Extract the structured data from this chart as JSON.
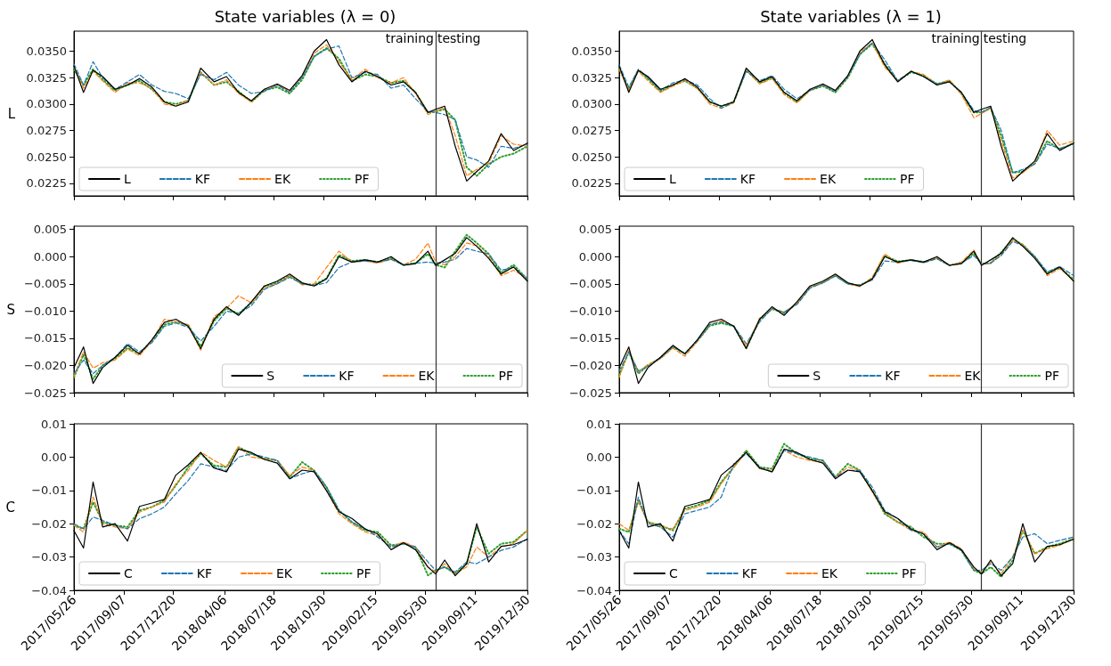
{
  "chart_data": [
    {
      "type": "line",
      "title": "State variables (λ = 0)",
      "ylabel": "L",
      "legend": "bottom left",
      "tick_labels": "y",
      "x": [
        "2017-05-26",
        "2017-06-15",
        "2017-07-05",
        "2017-07-25",
        "2017-08-20",
        "2017-09-15",
        "2017-10-10",
        "2017-11-05",
        "2017-12-01",
        "2017-12-25",
        "2018-01-20",
        "2018-02-15",
        "2018-03-15",
        "2018-04-10",
        "2018-05-05",
        "2018-06-01",
        "2018-06-28",
        "2018-07-25",
        "2018-08-20",
        "2018-09-15",
        "2018-10-10",
        "2018-11-05",
        "2018-12-01",
        "2018-12-28",
        "2019-01-25",
        "2019-02-20",
        "2019-03-20",
        "2019-04-15",
        "2019-05-10",
        "2019-06-05",
        "2019-06-21",
        "2019-07-10",
        "2019-08-01",
        "2019-08-25",
        "2019-09-15",
        "2019-10-10",
        "2019-11-05",
        "2019-12-01",
        "2019-12-30"
      ],
      "xlim": [
        "2017-05-26",
        "2019-12-30"
      ],
      "xticks": [
        {
          "value": "2017-05-26",
          "label": null
        },
        {
          "value": "2017-09-07",
          "label": null
        },
        {
          "value": "2017-12-20",
          "label": null
        },
        {
          "value": "2018-04-06",
          "label": null
        },
        {
          "value": "2018-07-18",
          "label": null
        },
        {
          "value": "2018-10-30",
          "label": null
        },
        {
          "value": "2019-02-15",
          "label": null
        },
        {
          "value": "2019-05-30",
          "label": null
        },
        {
          "value": "2019-09-11",
          "label": null
        },
        {
          "value": "2019-12-30",
          "label": null
        }
      ],
      "ylim": [
        0.0213,
        0.0369
      ],
      "yticks": [
        {
          "value": 0.0225,
          "label": "0.0225"
        },
        {
          "value": 0.025,
          "label": "0.0250"
        },
        {
          "value": 0.0275,
          "label": "0.0275"
        },
        {
          "value": 0.03,
          "label": "0.0300"
        },
        {
          "value": 0.0325,
          "label": "0.0325"
        },
        {
          "value": 0.035,
          "label": "0.0350"
        }
      ],
      "ref_lines": [
        {
          "axis": "x",
          "value": "2019-06-21",
          "color": "#333333"
        }
      ],
      "annotations": [
        {
          "text": "training",
          "x": "2019-06-21",
          "y": 0.0362
        },
        {
          "text": "testing",
          "x": "2019-06-21",
          "y": 0.0362
        }
      ],
      "series": [
        {
          "name": "L",
          "color": "#000000",
          "line_style": "solid",
          "values": [
            0.0336,
            0.0311,
            0.0332,
            0.0326,
            0.0314,
            0.0318,
            0.0324,
            0.0316,
            0.0302,
            0.0298,
            0.0302,
            0.0334,
            0.0321,
            0.0326,
            0.0311,
            0.0303,
            0.0314,
            0.0319,
            0.0313,
            0.0327,
            0.035,
            0.0361,
            0.0337,
            0.0321,
            0.0331,
            0.0326,
            0.0318,
            0.0321,
            0.0311,
            0.0292,
            0.0295,
            0.0298,
            0.026,
            0.0227,
            0.0236,
            0.0246,
            0.0272,
            0.0256,
            0.0263
          ]
        },
        {
          "name": "KF",
          "color": "#1f77b4",
          "line_style": "dashed",
          "values": [
            0.0338,
            0.0318,
            0.034,
            0.0325,
            0.0314,
            0.0321,
            0.0328,
            0.0318,
            0.0312,
            0.031,
            0.0305,
            0.0328,
            0.0323,
            0.033,
            0.0318,
            0.031,
            0.0312,
            0.0318,
            0.0311,
            0.0325,
            0.0345,
            0.0352,
            0.0355,
            0.0325,
            0.033,
            0.0328,
            0.0315,
            0.0318,
            0.0305,
            0.0293,
            0.0292,
            0.029,
            0.0285,
            0.025,
            0.0247,
            0.024,
            0.026,
            0.0258,
            0.0262
          ]
        },
        {
          "name": "EK",
          "color": "#ff7f0e",
          "line_style": "dashed",
          "values": [
            0.0335,
            0.0315,
            0.0331,
            0.0322,
            0.0311,
            0.032,
            0.032,
            0.0315,
            0.03,
            0.0298,
            0.0304,
            0.033,
            0.0318,
            0.0323,
            0.031,
            0.0302,
            0.0314,
            0.0318,
            0.0312,
            0.0326,
            0.0348,
            0.0356,
            0.034,
            0.0323,
            0.0333,
            0.0325,
            0.032,
            0.0325,
            0.031,
            0.029,
            0.0293,
            0.0297,
            0.027,
            0.0232,
            0.0238,
            0.0244,
            0.027,
            0.0262,
            0.026
          ]
        },
        {
          "name": "PF",
          "color": "#2ca02c",
          "line_style": "dotted",
          "values": [
            0.0333,
            0.0318,
            0.0333,
            0.0323,
            0.0313,
            0.0318,
            0.0322,
            0.0314,
            0.0302,
            0.03,
            0.0303,
            0.033,
            0.0318,
            0.0321,
            0.0312,
            0.0302,
            0.0313,
            0.0316,
            0.031,
            0.0323,
            0.0345,
            0.0353,
            0.0343,
            0.0322,
            0.0328,
            0.0326,
            0.032,
            0.0322,
            0.0311,
            0.0292,
            0.0293,
            0.0295,
            0.0285,
            0.024,
            0.0232,
            0.0243,
            0.025,
            0.0253,
            0.026
          ]
        }
      ]
    },
    {
      "type": "line",
      "title": "State variables (λ = 1)",
      "legend": "bottom left",
      "tick_labels": "y",
      "x": [
        "2017-05-26",
        "2017-06-15",
        "2017-07-05",
        "2017-07-25",
        "2017-08-20",
        "2017-09-15",
        "2017-10-10",
        "2017-11-05",
        "2017-12-01",
        "2017-12-25",
        "2018-01-20",
        "2018-02-15",
        "2018-03-15",
        "2018-04-10",
        "2018-05-05",
        "2018-06-01",
        "2018-06-28",
        "2018-07-25",
        "2018-08-20",
        "2018-09-15",
        "2018-10-10",
        "2018-11-05",
        "2018-12-01",
        "2018-12-28",
        "2019-01-25",
        "2019-02-20",
        "2019-03-20",
        "2019-04-15",
        "2019-05-10",
        "2019-06-05",
        "2019-06-21",
        "2019-07-10",
        "2019-08-01",
        "2019-08-25",
        "2019-09-15",
        "2019-10-10",
        "2019-11-05",
        "2019-12-01",
        "2019-12-30"
      ],
      "xlim": [
        "2017-05-26",
        "2019-12-30"
      ],
      "xticks": [
        {
          "value": "2017-05-26",
          "label": null
        },
        {
          "value": "2017-09-07",
          "label": null
        },
        {
          "value": "2017-12-20",
          "label": null
        },
        {
          "value": "2018-04-06",
          "label": null
        },
        {
          "value": "2018-07-18",
          "label": null
        },
        {
          "value": "2018-10-30",
          "label": null
        },
        {
          "value": "2019-02-15",
          "label": null
        },
        {
          "value": "2019-05-30",
          "label": null
        },
        {
          "value": "2019-09-11",
          "label": null
        },
        {
          "value": "2019-12-30",
          "label": null
        }
      ],
      "ylim": [
        0.0213,
        0.0369
      ],
      "yticks": [
        {
          "value": 0.0225,
          "label": "0.0225"
        },
        {
          "value": 0.025,
          "label": "0.0250"
        },
        {
          "value": 0.0275,
          "label": "0.0275"
        },
        {
          "value": 0.03,
          "label": "0.0300"
        },
        {
          "value": 0.0325,
          "label": "0.0325"
        },
        {
          "value": 0.035,
          "label": "0.0350"
        }
      ],
      "ref_lines": [
        {
          "axis": "x",
          "value": "2019-06-21",
          "color": "#333333"
        }
      ],
      "annotations": [
        {
          "text": "training",
          "x": "2019-06-21",
          "y": 0.0362
        },
        {
          "text": "testing",
          "x": "2019-06-21",
          "y": 0.0362
        }
      ],
      "series": [
        {
          "name": "L",
          "color": "#000000",
          "line_style": "solid",
          "values": [
            0.0336,
            0.0311,
            0.0332,
            0.0326,
            0.0314,
            0.0318,
            0.0324,
            0.0316,
            0.0302,
            0.0298,
            0.0302,
            0.0334,
            0.0321,
            0.0326,
            0.0311,
            0.0303,
            0.0314,
            0.0319,
            0.0313,
            0.0327,
            0.035,
            0.0361,
            0.0337,
            0.0321,
            0.0331,
            0.0326,
            0.0318,
            0.0321,
            0.0311,
            0.0292,
            0.0295,
            0.0298,
            0.026,
            0.0227,
            0.0236,
            0.0246,
            0.0272,
            0.0256,
            0.0263
          ]
        },
        {
          "name": "KF",
          "color": "#1f77b4",
          "line_style": "dashed",
          "values": [
            0.0337,
            0.0316,
            0.0333,
            0.0325,
            0.0313,
            0.032,
            0.0323,
            0.0318,
            0.0305,
            0.0296,
            0.0302,
            0.0331,
            0.0322,
            0.0327,
            0.0314,
            0.0305,
            0.0313,
            0.0318,
            0.0312,
            0.0326,
            0.0347,
            0.0358,
            0.0342,
            0.0322,
            0.0331,
            0.0326,
            0.0319,
            0.0321,
            0.0311,
            0.0294,
            0.0292,
            0.0297,
            0.0275,
            0.0235,
            0.0238,
            0.0243,
            0.0262,
            0.0258,
            0.0262
          ]
        },
        {
          "name": "EK",
          "color": "#ff7f0e",
          "line_style": "dashed",
          "values": [
            0.0333,
            0.0313,
            0.0331,
            0.0322,
            0.0311,
            0.0317,
            0.0322,
            0.0315,
            0.03,
            0.0296,
            0.0301,
            0.0332,
            0.0319,
            0.0324,
            0.0309,
            0.0301,
            0.0313,
            0.0318,
            0.0312,
            0.0326,
            0.0349,
            0.0358,
            0.0335,
            0.0322,
            0.0331,
            0.0328,
            0.0318,
            0.0323,
            0.0309,
            0.0287,
            0.0291,
            0.0296,
            0.0265,
            0.023,
            0.0235,
            0.0244,
            0.0275,
            0.0261,
            0.0265
          ]
        },
        {
          "name": "PF",
          "color": "#2ca02c",
          "line_style": "dotted",
          "values": [
            0.0334,
            0.0314,
            0.0332,
            0.0324,
            0.0312,
            0.0318,
            0.0322,
            0.0315,
            0.0302,
            0.0298,
            0.0302,
            0.0332,
            0.032,
            0.0325,
            0.0311,
            0.0302,
            0.0313,
            0.0317,
            0.0311,
            0.0325,
            0.0347,
            0.0357,
            0.0338,
            0.0322,
            0.033,
            0.0327,
            0.0319,
            0.0322,
            0.031,
            0.0292,
            0.0292,
            0.0296,
            0.027,
            0.0235,
            0.0236,
            0.0244,
            0.0265,
            0.0257,
            0.0263
          ]
        }
      ]
    },
    {
      "type": "line",
      "ylabel": "S",
      "legend": "bottom right",
      "tick_labels": "y",
      "x": [
        "2017-05-26",
        "2017-06-15",
        "2017-07-05",
        "2017-07-25",
        "2017-08-20",
        "2017-09-15",
        "2017-10-10",
        "2017-11-05",
        "2017-12-01",
        "2017-12-25",
        "2018-01-20",
        "2018-02-15",
        "2018-03-15",
        "2018-04-10",
        "2018-05-05",
        "2018-06-01",
        "2018-06-28",
        "2018-07-25",
        "2018-08-20",
        "2018-09-15",
        "2018-10-10",
        "2018-11-05",
        "2018-12-01",
        "2018-12-28",
        "2019-01-25",
        "2019-02-20",
        "2019-03-20",
        "2019-04-15",
        "2019-05-10",
        "2019-06-05",
        "2019-06-21",
        "2019-07-10",
        "2019-08-01",
        "2019-08-25",
        "2019-09-15",
        "2019-10-10",
        "2019-11-05",
        "2019-12-01",
        "2019-12-30"
      ],
      "xlim": [
        "2017-05-26",
        "2019-12-30"
      ],
      "xticks": [
        {
          "value": "2017-05-26",
          "label": null
        },
        {
          "value": "2017-09-07",
          "label": null
        },
        {
          "value": "2017-12-20",
          "label": null
        },
        {
          "value": "2018-04-06",
          "label": null
        },
        {
          "value": "2018-07-18",
          "label": null
        },
        {
          "value": "2018-10-30",
          "label": null
        },
        {
          "value": "2019-02-15",
          "label": null
        },
        {
          "value": "2019-05-30",
          "label": null
        },
        {
          "value": "2019-09-11",
          "label": null
        },
        {
          "value": "2019-12-30",
          "label": null
        }
      ],
      "ylim": [
        -0.025,
        0.0056
      ],
      "yticks": [
        {
          "value": -0.025,
          "label": "−0.025"
        },
        {
          "value": -0.02,
          "label": "−0.020"
        },
        {
          "value": -0.015,
          "label": "−0.015"
        },
        {
          "value": -0.01,
          "label": "−0.010"
        },
        {
          "value": -0.005,
          "label": "−0.005"
        },
        {
          "value": 0,
          "label": "0.000"
        },
        {
          "value": 0.005,
          "label": "0.005"
        }
      ],
      "ref_lines": [
        {
          "axis": "x",
          "value": "2019-06-21",
          "color": "#333333"
        }
      ],
      "series": [
        {
          "name": "S",
          "color": "#000000",
          "line_style": "solid",
          "values": [
            -0.0204,
            -0.0166,
            -0.0233,
            -0.0204,
            -0.0185,
            -0.0163,
            -0.0179,
            -0.0153,
            -0.0121,
            -0.0115,
            -0.0128,
            -0.0169,
            -0.0115,
            -0.0092,
            -0.0108,
            -0.0083,
            -0.0054,
            -0.0045,
            -0.0032,
            -0.0048,
            -0.0054,
            -0.0041,
            0.0,
            -0.001,
            -0.0006,
            -0.001,
            0.0,
            -0.0016,
            -0.0013,
            0.001,
            -0.0016,
            -0.0006,
            0.0006,
            0.0035,
            0.0019,
            -0.0003,
            -0.0032,
            -0.0019,
            -0.0045
          ]
        },
        {
          "name": "KF",
          "color": "#1f77b4",
          "line_style": "dashed",
          "values": [
            -0.0215,
            -0.019,
            -0.0215,
            -0.02,
            -0.0185,
            -0.016,
            -0.0175,
            -0.0158,
            -0.0128,
            -0.0122,
            -0.013,
            -0.0155,
            -0.0128,
            -0.01,
            -0.0105,
            -0.009,
            -0.006,
            -0.005,
            -0.0038,
            -0.005,
            -0.0053,
            -0.0048,
            -0.002,
            -0.001,
            -0.0008,
            -0.001,
            -0.0005,
            -0.0015,
            -0.0012,
            -0.001,
            -0.0012,
            -0.001,
            -0.0005,
            0.0015,
            0.001,
            0.0005,
            -0.0025,
            -0.002,
            -0.004
          ]
        },
        {
          "name": "EK",
          "color": "#ff7f0e",
          "line_style": "dashed",
          "values": [
            -0.022,
            -0.0175,
            -0.0205,
            -0.0195,
            -0.019,
            -0.017,
            -0.0182,
            -0.0155,
            -0.0115,
            -0.012,
            -0.0125,
            -0.0172,
            -0.011,
            -0.0095,
            -0.0072,
            -0.0085,
            -0.0058,
            -0.005,
            -0.0035,
            -0.0052,
            -0.005,
            -0.002,
            0.001,
            -0.001,
            -0.0008,
            -0.0012,
            -0.0005,
            -0.0015,
            -0.0005,
            0.0025,
            -0.001,
            -0.0015,
            0.0,
            0.0025,
            0.002,
            0.0,
            -0.0035,
            -0.0025,
            -0.004
          ]
        },
        {
          "name": "PF",
          "color": "#2ca02c",
          "line_style": "dotted",
          "values": [
            -0.0222,
            -0.018,
            -0.0225,
            -0.02,
            -0.0187,
            -0.0168,
            -0.0178,
            -0.0155,
            -0.0125,
            -0.012,
            -0.0126,
            -0.0165,
            -0.0118,
            -0.0095,
            -0.0105,
            -0.0085,
            -0.0055,
            -0.0048,
            -0.0035,
            -0.005,
            -0.0052,
            -0.004,
            0.0003,
            -0.0008,
            -0.0006,
            -0.001,
            -0.0003,
            -0.0015,
            -0.0012,
            0.0005,
            -0.0015,
            -0.002,
            0.001,
            0.004,
            0.0025,
            0.0005,
            -0.003,
            -0.0015,
            -0.0042
          ]
        }
      ]
    },
    {
      "type": "line",
      "legend": "bottom right",
      "tick_labels": "y",
      "x": [
        "2017-05-26",
        "2017-06-15",
        "2017-07-05",
        "2017-07-25",
        "2017-08-20",
        "2017-09-15",
        "2017-10-10",
        "2017-11-05",
        "2017-12-01",
        "2017-12-25",
        "2018-01-20",
        "2018-02-15",
        "2018-03-15",
        "2018-04-10",
        "2018-05-05",
        "2018-06-01",
        "2018-06-28",
        "2018-07-25",
        "2018-08-20",
        "2018-09-15",
        "2018-10-10",
        "2018-11-05",
        "2018-12-01",
        "2018-12-28",
        "2019-01-25",
        "2019-02-20",
        "2019-03-20",
        "2019-04-15",
        "2019-05-10",
        "2019-06-05",
        "2019-06-21",
        "2019-07-10",
        "2019-08-01",
        "2019-08-25",
        "2019-09-15",
        "2019-10-10",
        "2019-11-05",
        "2019-12-01",
        "2019-12-30"
      ],
      "xlim": [
        "2017-05-26",
        "2019-12-30"
      ],
      "xticks": [
        {
          "value": "2017-05-26",
          "label": null
        },
        {
          "value": "2017-09-07",
          "label": null
        },
        {
          "value": "2017-12-20",
          "label": null
        },
        {
          "value": "2018-04-06",
          "label": null
        },
        {
          "value": "2018-07-18",
          "label": null
        },
        {
          "value": "2018-10-30",
          "label": null
        },
        {
          "value": "2019-02-15",
          "label": null
        },
        {
          "value": "2019-05-30",
          "label": null
        },
        {
          "value": "2019-09-11",
          "label": null
        },
        {
          "value": "2019-12-30",
          "label": null
        }
      ],
      "ylim": [
        -0.025,
        0.0056
      ],
      "yticks": [
        {
          "value": -0.025,
          "label": "−0.025"
        },
        {
          "value": -0.02,
          "label": "−0.020"
        },
        {
          "value": -0.015,
          "label": "−0.015"
        },
        {
          "value": -0.01,
          "label": "−0.010"
        },
        {
          "value": -0.005,
          "label": "−0.005"
        },
        {
          "value": 0,
          "label": "0.000"
        },
        {
          "value": 0.005,
          "label": "0.005"
        }
      ],
      "ref_lines": [
        {
          "axis": "x",
          "value": "2019-06-21",
          "color": "#333333"
        }
      ],
      "series": [
        {
          "name": "S",
          "color": "#000000",
          "line_style": "solid",
          "values": [
            -0.0204,
            -0.0166,
            -0.0233,
            -0.0204,
            -0.0185,
            -0.0163,
            -0.0179,
            -0.0153,
            -0.0121,
            -0.0115,
            -0.0128,
            -0.0169,
            -0.0115,
            -0.0092,
            -0.0108,
            -0.0083,
            -0.0054,
            -0.0045,
            -0.0032,
            -0.0048,
            -0.0054,
            -0.0041,
            0.0,
            -0.001,
            -0.0006,
            -0.001,
            0.0,
            -0.0016,
            -0.0013,
            0.001,
            -0.0016,
            -0.0006,
            0.0006,
            0.0035,
            0.0019,
            -0.0003,
            -0.0032,
            -0.0019,
            -0.0045
          ]
        },
        {
          "name": "KF",
          "color": "#1f77b4",
          "line_style": "dashed",
          "values": [
            -0.021,
            -0.0175,
            -0.021,
            -0.0202,
            -0.0186,
            -0.0165,
            -0.0178,
            -0.0155,
            -0.0125,
            -0.012,
            -0.0127,
            -0.016,
            -0.012,
            -0.0095,
            -0.0102,
            -0.0088,
            -0.0058,
            -0.0048,
            -0.0036,
            -0.005,
            -0.0052,
            -0.0043,
            -0.0008,
            -0.001,
            -0.0007,
            -0.0011,
            -0.0004,
            -0.0016,
            -0.0012,
            0.0002,
            -0.0013,
            -0.0012,
            0.0002,
            0.0028,
            0.002,
            0.0,
            -0.0028,
            -0.0018,
            -0.0035
          ]
        },
        {
          "name": "EK",
          "color": "#ff7f0e",
          "line_style": "dashed",
          "values": [
            -0.0222,
            -0.0172,
            -0.0212,
            -0.0198,
            -0.0188,
            -0.0168,
            -0.0183,
            -0.0156,
            -0.0125,
            -0.0118,
            -0.0127,
            -0.0165,
            -0.0113,
            -0.0096,
            -0.0102,
            -0.0086,
            -0.0056,
            -0.0047,
            -0.0033,
            -0.005,
            -0.0055,
            -0.0038,
            0.0005,
            -0.0012,
            -0.0006,
            -0.0011,
            -0.0002,
            -0.0016,
            -0.001,
            0.0012,
            -0.0015,
            -0.0012,
            0.0004,
            0.003,
            0.0022,
            0.0,
            -0.0035,
            -0.0022,
            -0.0043
          ]
        },
        {
          "name": "PF",
          "color": "#2ca02c",
          "line_style": "dotted",
          "values": [
            -0.0218,
            -0.0175,
            -0.0215,
            -0.02,
            -0.0186,
            -0.0166,
            -0.0178,
            -0.0155,
            -0.0127,
            -0.0122,
            -0.0128,
            -0.0168,
            -0.0116,
            -0.0096,
            -0.0104,
            -0.0086,
            -0.0056,
            -0.0048,
            -0.0034,
            -0.005,
            -0.0053,
            -0.0041,
            0.0002,
            -0.0009,
            -0.0006,
            -0.001,
            -0.0003,
            -0.0016,
            -0.0012,
            0.0006,
            -0.0013,
            -0.0012,
            0.0008,
            0.0032,
            0.0022,
            0.0,
            -0.003,
            -0.002,
            -0.0042
          ]
        }
      ]
    },
    {
      "type": "line",
      "ylabel": "C",
      "legend": "bottom left",
      "x": [
        "2017-05-26",
        "2017-06-15",
        "2017-07-05",
        "2017-07-25",
        "2017-08-20",
        "2017-09-15",
        "2017-10-10",
        "2017-11-05",
        "2017-12-01",
        "2017-12-25",
        "2018-01-20",
        "2018-02-15",
        "2018-03-15",
        "2018-04-10",
        "2018-05-05",
        "2018-06-01",
        "2018-06-28",
        "2018-07-25",
        "2018-08-20",
        "2018-09-15",
        "2018-10-10",
        "2018-11-05",
        "2018-12-01",
        "2018-12-28",
        "2019-01-25",
        "2019-02-20",
        "2019-03-20",
        "2019-04-15",
        "2019-05-10",
        "2019-06-05",
        "2019-06-21",
        "2019-07-10",
        "2019-08-01",
        "2019-08-25",
        "2019-09-15",
        "2019-10-10",
        "2019-11-05",
        "2019-12-01",
        "2019-12-30"
      ],
      "xlim": [
        "2017-05-26",
        "2019-12-30"
      ],
      "xticks": [
        {
          "value": "2017-05-26",
          "label": "2017/05/26"
        },
        {
          "value": "2017-09-07",
          "label": "2017/09/07"
        },
        {
          "value": "2017-12-20",
          "label": "2017/12/20"
        },
        {
          "value": "2018-04-06",
          "label": "2018/04/06"
        },
        {
          "value": "2018-07-18",
          "label": "2018/07/18"
        },
        {
          "value": "2018-10-30",
          "label": "2018/10/30"
        },
        {
          "value": "2019-02-15",
          "label": "2019/02/15"
        },
        {
          "value": "2019-05-30",
          "label": "2019/05/30"
        },
        {
          "value": "2019-09-11",
          "label": "2019/09/11"
        },
        {
          "value": "2019-12-30",
          "label": "2019/12/30"
        }
      ],
      "ylim": [
        -0.04,
        0.01
      ],
      "yticks": [
        {
          "value": -0.04,
          "label": "−0.04"
        },
        {
          "value": -0.03,
          "label": "−0.03"
        },
        {
          "value": -0.02,
          "label": "−0.02"
        },
        {
          "value": -0.01,
          "label": "−0.01"
        },
        {
          "value": 0,
          "label": "0.00"
        },
        {
          "value": 0.01,
          "label": "0.01"
        }
      ],
      "ref_lines": [
        {
          "axis": "x",
          "value": "2019-06-21",
          "color": "#333333"
        }
      ],
      "series": [
        {
          "name": "C",
          "color": "#000000",
          "line_style": "solid",
          "values": [
            -0.0221,
            -0.0273,
            -0.0075,
            -0.021,
            -0.02,
            -0.0252,
            -0.0148,
            -0.0138,
            -0.0127,
            -0.0054,
            -0.0023,
            0.0014,
            -0.0033,
            -0.0044,
            0.0024,
            0.0014,
            -0.0007,
            -0.0018,
            -0.0065,
            -0.0039,
            -0.0044,
            -0.0101,
            -0.0164,
            -0.0184,
            -0.0216,
            -0.0231,
            -0.0278,
            -0.0257,
            -0.0278,
            -0.033,
            -0.0351,
            -0.0309,
            -0.0356,
            -0.032,
            -0.02,
            -0.0315,
            -0.0268,
            -0.0263,
            -0.0247
          ]
        },
        {
          "name": "KF",
          "color": "#1f77b4",
          "line_style": "dashed",
          "values": [
            -0.02,
            -0.0215,
            -0.018,
            -0.019,
            -0.0205,
            -0.0215,
            -0.0185,
            -0.017,
            -0.015,
            -0.011,
            -0.007,
            -0.002,
            -0.003,
            -0.004,
            0.0,
            0.001,
            0.0,
            -0.001,
            -0.0065,
            -0.005,
            -0.004,
            -0.009,
            -0.016,
            -0.0195,
            -0.0215,
            -0.024,
            -0.027,
            -0.026,
            -0.027,
            -0.0315,
            -0.034,
            -0.033,
            -0.0345,
            -0.0315,
            -0.032,
            -0.03,
            -0.028,
            -0.027,
            -0.0245
          ]
        },
        {
          "name": "EK",
          "color": "#ff7f0e",
          "line_style": "dashed",
          "values": [
            -0.0205,
            -0.0225,
            -0.012,
            -0.02,
            -0.021,
            -0.0215,
            -0.0165,
            -0.015,
            -0.0135,
            -0.008,
            -0.004,
            0.0015,
            -0.001,
            -0.003,
            0.003,
            0.0,
            -0.0005,
            -0.001,
            -0.0055,
            -0.003,
            -0.004,
            -0.01,
            -0.017,
            -0.02,
            -0.0225,
            -0.0235,
            -0.027,
            -0.0255,
            -0.027,
            -0.033,
            -0.0345,
            -0.032,
            -0.035,
            -0.033,
            -0.027,
            -0.03,
            -0.027,
            -0.026,
            -0.022
          ]
        },
        {
          "name": "PF",
          "color": "#2ca02c",
          "line_style": "dotted",
          "values": [
            -0.0205,
            -0.0215,
            -0.0135,
            -0.0195,
            -0.0205,
            -0.021,
            -0.016,
            -0.015,
            -0.013,
            -0.0085,
            -0.003,
            0.001,
            -0.0025,
            -0.003,
            0.003,
            0.001,
            -0.0005,
            -0.001,
            -0.006,
            -0.0015,
            -0.004,
            -0.009,
            -0.016,
            -0.0195,
            -0.022,
            -0.0225,
            -0.0265,
            -0.026,
            -0.027,
            -0.0355,
            -0.034,
            -0.033,
            -0.035,
            -0.032,
            -0.021,
            -0.029,
            -0.026,
            -0.0255,
            -0.022
          ]
        }
      ]
    },
    {
      "type": "line",
      "legend": "bottom left",
      "x": [
        "2017-05-26",
        "2017-06-15",
        "2017-07-05",
        "2017-07-25",
        "2017-08-20",
        "2017-09-15",
        "2017-10-10",
        "2017-11-05",
        "2017-12-01",
        "2017-12-25",
        "2018-01-20",
        "2018-02-15",
        "2018-03-15",
        "2018-04-10",
        "2018-05-05",
        "2018-06-01",
        "2018-06-28",
        "2018-07-25",
        "2018-08-20",
        "2018-09-15",
        "2018-10-10",
        "2018-11-05",
        "2018-12-01",
        "2018-12-28",
        "2019-01-25",
        "2019-02-20",
        "2019-03-20",
        "2019-04-15",
        "2019-05-10",
        "2019-06-05",
        "2019-06-21",
        "2019-07-10",
        "2019-08-01",
        "2019-08-25",
        "2019-09-15",
        "2019-10-10",
        "2019-11-05",
        "2019-12-01",
        "2019-12-30"
      ],
      "xlim": [
        "2017-05-26",
        "2019-12-30"
      ],
      "xticks": [
        {
          "value": "2017-05-26",
          "label": "2017/05/26"
        },
        {
          "value": "2017-09-07",
          "label": "2017/09/07"
        },
        {
          "value": "2017-12-20",
          "label": "2017/12/20"
        },
        {
          "value": "2018-04-06",
          "label": "2018/04/06"
        },
        {
          "value": "2018-07-18",
          "label": "2018/07/18"
        },
        {
          "value": "2018-10-30",
          "label": "2018/10/30"
        },
        {
          "value": "2019-02-15",
          "label": "2019/02/15"
        },
        {
          "value": "2019-05-30",
          "label": "2019/05/30"
        },
        {
          "value": "2019-09-11",
          "label": "2019/09/11"
        },
        {
          "value": "2019-12-30",
          "label": "2019/12/30"
        }
      ],
      "ylim": [
        -0.04,
        0.01
      ],
      "yticks": [
        {
          "value": -0.04,
          "label": "−0.04"
        },
        {
          "value": -0.03,
          "label": "−0.03"
        },
        {
          "value": -0.02,
          "label": "−0.02"
        },
        {
          "value": -0.01,
          "label": "−0.01"
        },
        {
          "value": 0,
          "label": "0.00"
        },
        {
          "value": 0.01,
          "label": "0.01"
        }
      ],
      "ref_lines": [
        {
          "axis": "x",
          "value": "2019-06-21",
          "color": "#333333"
        }
      ],
      "series": [
        {
          "name": "C",
          "color": "#000000",
          "line_style": "solid",
          "values": [
            -0.0221,
            -0.0273,
            -0.0075,
            -0.021,
            -0.02,
            -0.0252,
            -0.0148,
            -0.0138,
            -0.0127,
            -0.0054,
            -0.0023,
            0.0014,
            -0.0033,
            -0.0044,
            0.0024,
            0.0014,
            -0.0007,
            -0.0018,
            -0.0065,
            -0.0039,
            -0.0044,
            -0.0101,
            -0.0164,
            -0.0184,
            -0.0216,
            -0.0231,
            -0.0278,
            -0.0257,
            -0.0278,
            -0.033,
            -0.0351,
            -0.0309,
            -0.0356,
            -0.032,
            -0.02,
            -0.0315,
            -0.0268,
            -0.0263,
            -0.0247
          ]
        },
        {
          "name": "KF",
          "color": "#1f77b4",
          "line_style": "dashed",
          "values": [
            -0.022,
            -0.026,
            -0.012,
            -0.02,
            -0.021,
            -0.024,
            -0.017,
            -0.016,
            -0.015,
            -0.012,
            -0.002,
            0.001,
            -0.003,
            -0.0045,
            0.002,
            0.001,
            0.0,
            -0.001,
            -0.006,
            -0.004,
            -0.004,
            -0.009,
            -0.016,
            -0.0185,
            -0.022,
            -0.023,
            -0.027,
            -0.026,
            -0.028,
            -0.034,
            -0.034,
            -0.032,
            -0.034,
            -0.03,
            -0.024,
            -0.023,
            -0.026,
            -0.025,
            -0.024
          ]
        },
        {
          "name": "EK",
          "color": "#ff7f0e",
          "line_style": "dashed",
          "values": [
            -0.02,
            -0.022,
            -0.0135,
            -0.0195,
            -0.021,
            -0.0215,
            -0.016,
            -0.015,
            -0.0135,
            -0.008,
            -0.003,
            0.0015,
            -0.0035,
            -0.004,
            0.002,
            0.0,
            -0.001,
            -0.0015,
            -0.006,
            -0.003,
            -0.004,
            -0.0105,
            -0.0165,
            -0.0195,
            -0.022,
            -0.0225,
            -0.027,
            -0.0255,
            -0.0275,
            -0.0335,
            -0.0345,
            -0.0315,
            -0.035,
            -0.03,
            -0.022,
            -0.029,
            -0.0275,
            -0.0265,
            -0.0245
          ]
        },
        {
          "name": "PF",
          "color": "#2ca02c",
          "line_style": "dotted",
          "values": [
            -0.0215,
            -0.0225,
            -0.013,
            -0.0195,
            -0.0205,
            -0.022,
            -0.0155,
            -0.0145,
            -0.013,
            -0.0075,
            -0.003,
            0.002,
            -0.003,
            -0.0035,
            0.004,
            0.001,
            -0.0005,
            -0.001,
            -0.006,
            -0.002,
            -0.004,
            -0.01,
            -0.017,
            -0.0195,
            -0.021,
            -0.024,
            -0.026,
            -0.026,
            -0.028,
            -0.034,
            -0.035,
            -0.033,
            -0.036,
            -0.031,
            -0.022,
            -0.029,
            -0.027,
            -0.026,
            -0.0245
          ]
        }
      ]
    }
  ]
}
